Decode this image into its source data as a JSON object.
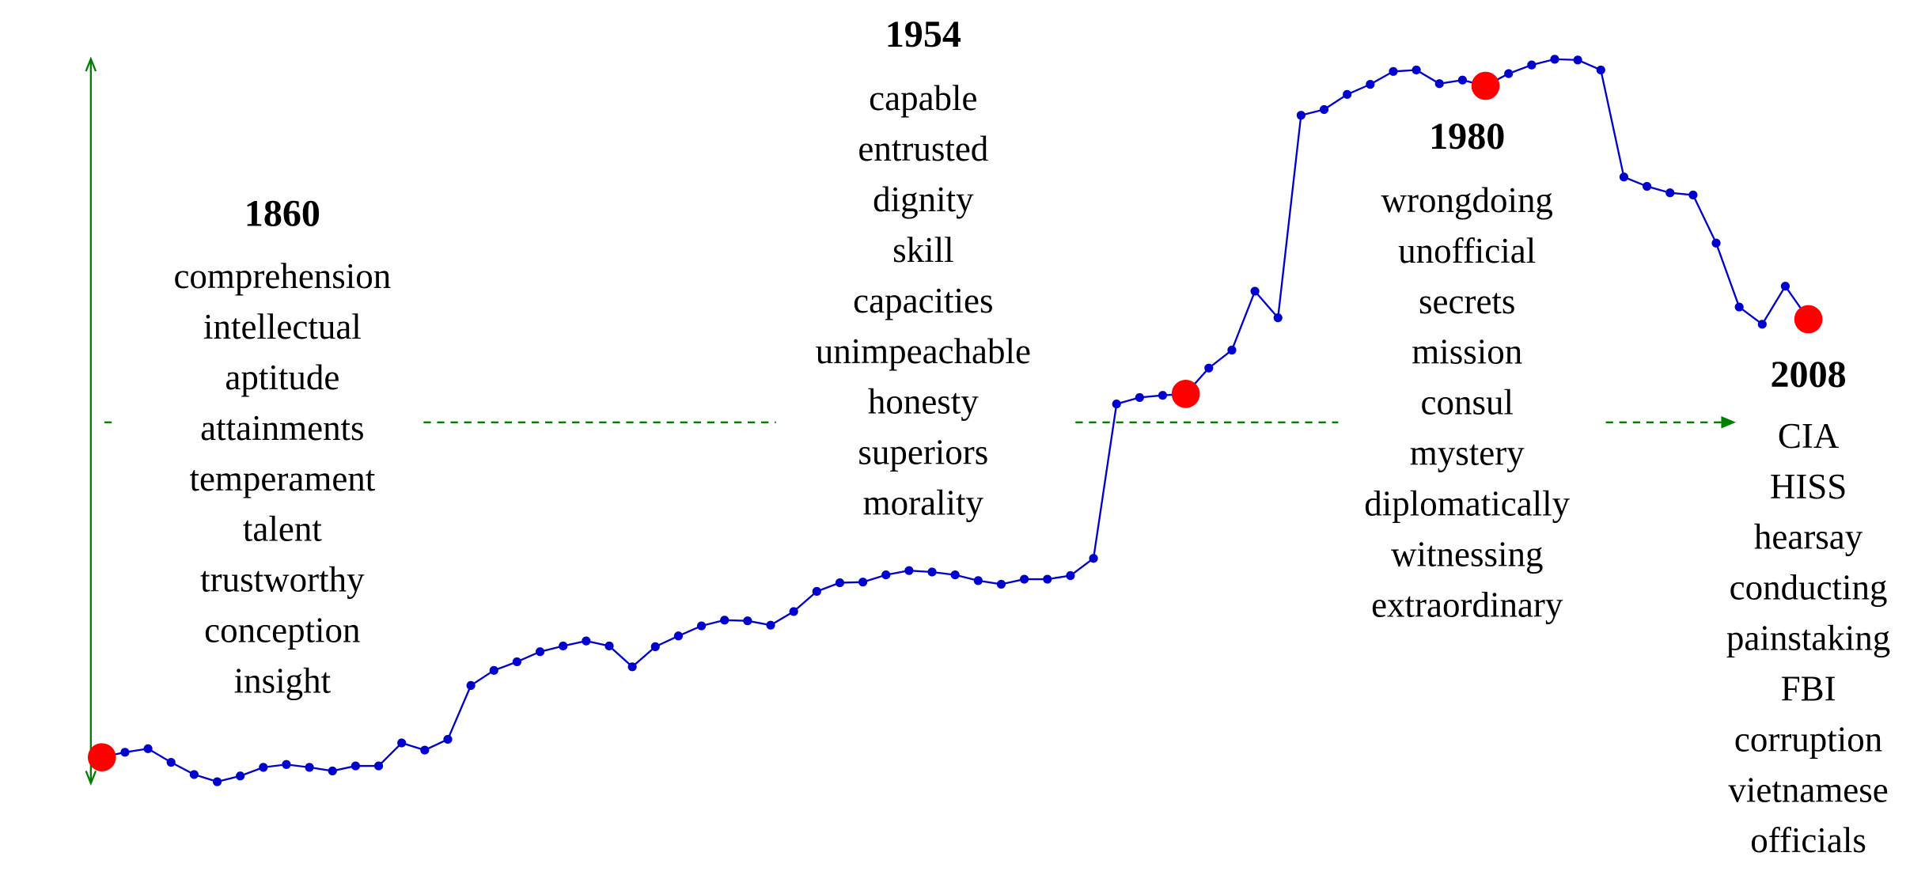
{
  "chart_data": {
    "type": "line",
    "x": [
      1860,
      1862,
      1864,
      1866,
      1868,
      1870,
      1872,
      1874,
      1876,
      1878,
      1880,
      1882,
      1884,
      1886,
      1888,
      1890,
      1892,
      1894,
      1896,
      1898,
      1900,
      1902,
      1904,
      1906,
      1908,
      1910,
      1912,
      1914,
      1916,
      1918,
      1920,
      1922,
      1924,
      1926,
      1928,
      1930,
      1932,
      1934,
      1936,
      1938,
      1940,
      1942,
      1944,
      1946,
      1948,
      1950,
      1952,
      1954,
      1956,
      1958,
      1960,
      1962,
      1964,
      1966,
      1968,
      1970,
      1972,
      1974,
      1976,
      1978,
      1980,
      1982,
      1984,
      1986,
      1988,
      1990,
      1992,
      1994,
      1996,
      1998,
      2000,
      2002,
      2004,
      2006,
      2008
    ],
    "values": [
      3.1,
      3.8,
      4.3,
      2.4,
      0.7,
      -0.3,
      0.5,
      1.7,
      2.1,
      1.7,
      1.2,
      1.9,
      1.9,
      5.1,
      4.1,
      5.6,
      13.1,
      15.2,
      16.4,
      17.8,
      18.6,
      19.3,
      18.6,
      15.7,
      18.5,
      20.0,
      21.4,
      22.2,
      22.1,
      21.5,
      23.4,
      26.2,
      27.4,
      27.5,
      28.5,
      29.1,
      28.9,
      28.5,
      27.7,
      27.2,
      27.9,
      27.9,
      28.4,
      30.8,
      52.3,
      53.2,
      53.5,
      53.7,
      57.3,
      59.8,
      68.0,
      64.3,
      92.5,
      93.3,
      95.4,
      96.8,
      98.6,
      98.8,
      96.9,
      97.4,
      96.6,
      98.3,
      99.5,
      100.3,
      100.2,
      98.8,
      83.9,
      82.6,
      81.7,
      81.4,
      74.7,
      65.8,
      63.4,
      68.7,
      64.1
    ],
    "color": "#0000cc",
    "highlight_color": "#ff0000",
    "axis_color": "#008000",
    "xlim": [
      1860,
      2008
    ],
    "ylim": [
      0,
      100
    ],
    "annotations": [
      {
        "x": 1860,
        "words": [
          "comprehension",
          "intellectual",
          "aptitude",
          "attainments",
          "temperament",
          "talent",
          "trustworthy",
          "conception",
          "insight"
        ]
      },
      {
        "x": 1954,
        "words": [
          "capable",
          "entrusted",
          "dignity",
          "skill",
          "capacities",
          "unimpeachable",
          "honesty",
          "superiors",
          "morality"
        ]
      },
      {
        "x": 1980,
        "words": [
          "wrongdoing",
          "unofficial",
          "secrets",
          "mission",
          "consul",
          "mystery",
          "diplomatically",
          "witnessing",
          "extraordinary"
        ]
      },
      {
        "x": 2008,
        "words": [
          "CIA",
          "HISS",
          "hearsay",
          "conducting",
          "painstaking",
          "FBI",
          "corruption",
          "vietnamese",
          "officials"
        ]
      }
    ]
  }
}
